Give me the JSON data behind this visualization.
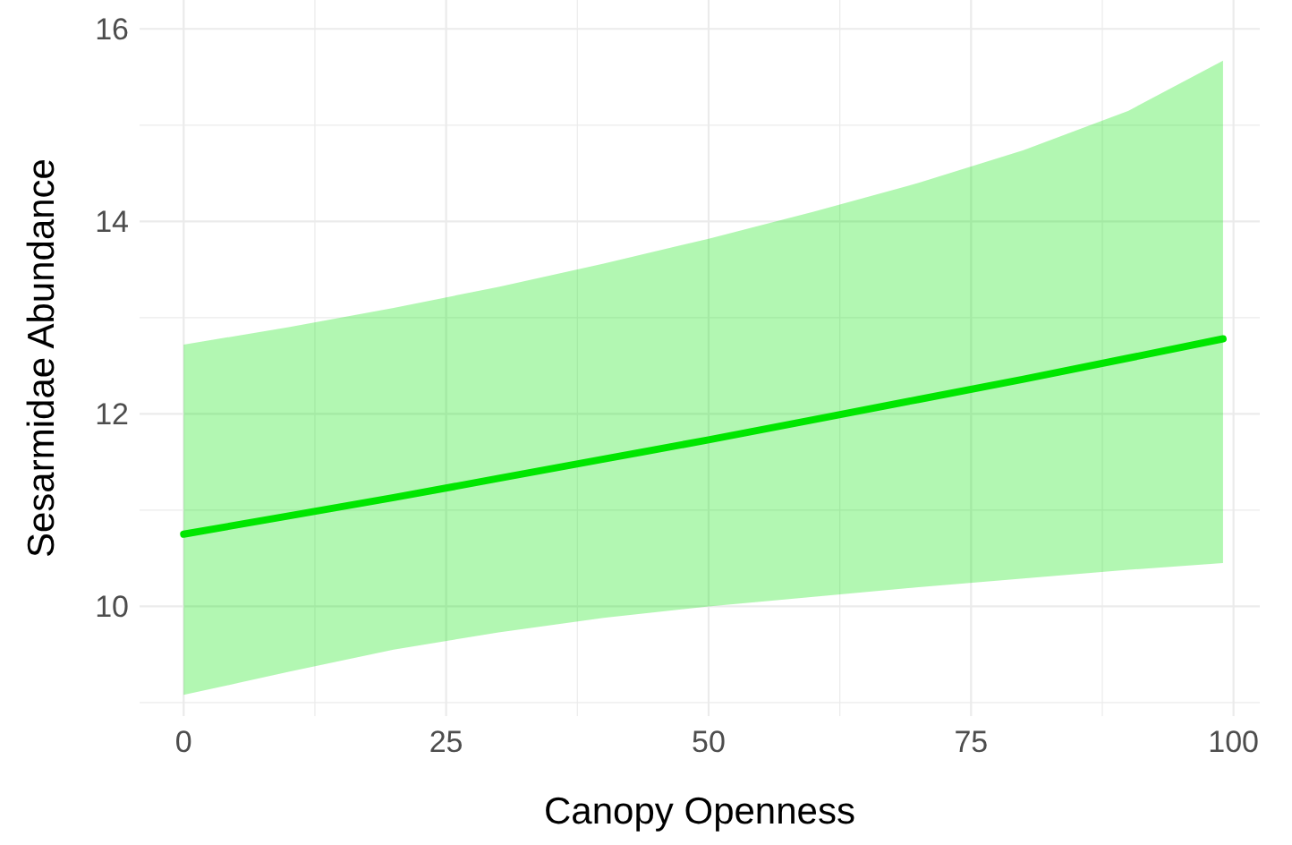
{
  "chart_data": {
    "type": "line",
    "xlabel": "Canopy Openness",
    "ylabel": "Sesarmidae Abundance",
    "x": [
      0,
      10,
      20,
      30,
      40,
      50,
      60,
      70,
      80,
      90,
      99
    ],
    "series": [
      {
        "color": "#00e600",
        "values": [
          10.75,
          10.94,
          11.13,
          11.33,
          11.53,
          11.73,
          11.94,
          12.15,
          12.36,
          12.58,
          12.78
        ],
        "lower": [
          9.08,
          9.32,
          9.55,
          9.73,
          9.88,
          10.0,
          10.1,
          10.2,
          10.29,
          10.38,
          10.45
        ],
        "upper": [
          12.72,
          12.9,
          13.1,
          13.32,
          13.56,
          13.82,
          14.1,
          14.4,
          14.74,
          15.15,
          15.67
        ]
      }
    ],
    "xlim": [
      -4.2,
      102.5
    ],
    "ylim": [
      8.86,
      16.3
    ],
    "xticks": [
      0,
      {
        "value": 12.5,
        "label": null
      },
      25,
      {
        "value": 37.5,
        "label": null
      },
      50,
      {
        "value": 62.5,
        "label": null
      },
      75,
      {
        "value": 87.5,
        "label": null
      },
      100
    ],
    "yticks": [
      {
        "value": 9,
        "label": null
      },
      10,
      {
        "value": 11,
        "label": null
      },
      12,
      {
        "value": 13,
        "label": null
      },
      14,
      {
        "value": 15,
        "label": null
      },
      16
    ],
    "grid": true,
    "marker": "none",
    "line_style": "solid"
  }
}
